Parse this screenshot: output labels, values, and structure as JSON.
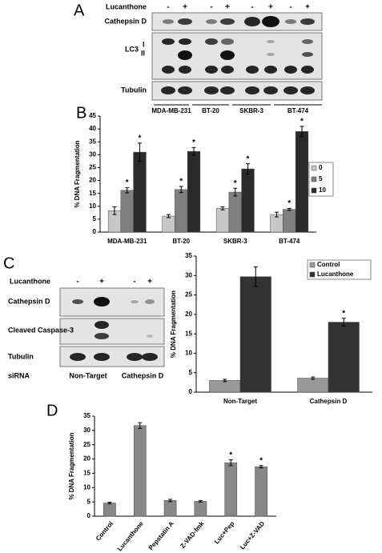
{
  "panel_labels": [
    "A",
    "B",
    "C",
    "D"
  ],
  "blot_A": {
    "treatment": "Lucanthone",
    "lanes": [
      "-",
      "+",
      "-",
      "+",
      "-",
      "+",
      "-",
      "+"
    ],
    "rows": [
      "Cathepsin D",
      "LC3",
      "Tubulin"
    ],
    "lc3_forms": [
      "I",
      "II"
    ],
    "cell_lines": [
      "MDA-MB-231",
      "BT-20",
      "SKBR-3",
      "BT-474"
    ]
  },
  "blot_C": {
    "treatment": "Lucanthone",
    "lanes": [
      "-",
      "+",
      "-",
      "+"
    ],
    "rows": [
      "Cathepsin D",
      "Cleaved Caspase-3",
      "Tubulin"
    ],
    "sirna_label": "siRNA",
    "sirna": [
      "Non-Target",
      "Cathepsin D"
    ]
  },
  "chart_data": [
    {
      "type": "bar",
      "y_label": "% DNA Fragmentation",
      "categories": [
        "MDA-MB-231",
        "BT-20",
        "SKBR-3",
        "BT-474"
      ],
      "series": [
        {
          "name": "0",
          "color": "#c8c8c8",
          "values": [
            8.3,
            6.2,
            9.2,
            6.8
          ],
          "errors": [
            1.5,
            0.6,
            0.6,
            0.9
          ]
        },
        {
          "name": "5",
          "color": "#808080",
          "values": [
            16.2,
            16.5,
            15.5,
            8.8
          ],
          "errors": [
            1.0,
            1.2,
            1.5,
            0.4
          ]
        },
        {
          "name": "10",
          "color": "#2a2a2a",
          "values": [
            31,
            31.3,
            24.5,
            39
          ],
          "errors": [
            3.5,
            1.5,
            2.0,
            2.0
          ]
        }
      ],
      "annotations": [
        {
          "text": "*",
          "series": 1,
          "index": 0
        },
        {
          "text": "*",
          "series": 2,
          "index": 0
        },
        {
          "text": "*",
          "series": 1,
          "index": 1
        },
        {
          "text": "*",
          "series": 2,
          "index": 1
        },
        {
          "text": "*",
          "series": 1,
          "index": 2
        },
        {
          "text": "*",
          "series": 2,
          "index": 2
        },
        {
          "text": "*",
          "series": 1,
          "index": 3
        },
        {
          "text": "*",
          "series": 2,
          "index": 3
        }
      ],
      "ylim": [
        0,
        45
      ],
      "yticks": [
        0,
        5,
        10,
        15,
        20,
        25,
        30,
        35,
        40,
        45
      ],
      "legend": "right"
    },
    {
      "type": "bar",
      "y_label": "% DNA Fragmentation",
      "categories": [
        "Non-Target",
        "Cathepsin D"
      ],
      "series": [
        {
          "name": "Control",
          "color": "#999999",
          "values": [
            3,
            3.6
          ],
          "errors": [
            0.3,
            0.3
          ]
        },
        {
          "name": "Lucanthone",
          "color": "#333333",
          "values": [
            29.7,
            18
          ],
          "errors": [
            2.5,
            1.0
          ]
        }
      ],
      "annotations": [
        {
          "text": "*",
          "series": 1,
          "index": 1
        }
      ],
      "ylim": [
        0,
        35
      ],
      "yticks": [
        0,
        5,
        10,
        15,
        20,
        25,
        30,
        35
      ],
      "legend": "upper right"
    },
    {
      "type": "bar",
      "y_label": "% DNA Fragmentation",
      "categories": [
        "Control",
        "Lucanthone",
        "Pepstatin A",
        "Z-VAD-fmk",
        "Luc+Pep",
        "Luc+Z-VAD"
      ],
      "values": [
        4.6,
        31.7,
        5.5,
        5.2,
        18.7,
        17.3
      ],
      "errors": [
        0.3,
        1.0,
        0.4,
        0.3,
        1.0,
        0.4
      ],
      "color": "#888888",
      "annotations": [
        {
          "text": "*",
          "index": 4
        },
        {
          "text": "*",
          "index": 5
        }
      ],
      "ylim": [
        0,
        35
      ],
      "yticks": [
        0,
        5,
        10,
        15,
        20,
        25,
        30,
        35
      ]
    }
  ]
}
